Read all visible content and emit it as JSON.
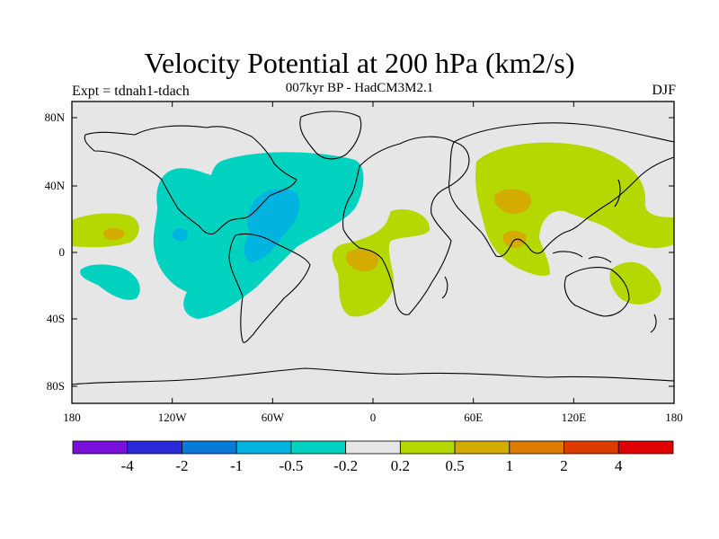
{
  "title": "Velocity Potential at 200 hPa (km2/s)",
  "subtitle": "007kyr BP - HadCM3M2.1",
  "expt_label": "Expt = tdnah1-tdach",
  "season": "DJF",
  "map": {
    "lon_ticks": [
      "180",
      "120W",
      "60W",
      "0",
      "60E",
      "120E",
      "180"
    ],
    "lat_ticks": [
      "80N",
      "40N",
      "0",
      "40S",
      "80S"
    ],
    "background_color": "#e6e6e6"
  },
  "colorbar": {
    "colors": [
      "#7a10d8",
      "#2a2ad8",
      "#0a7ad8",
      "#00b4e0",
      "#00d2c0",
      "#e6e6e6",
      "#b4d800",
      "#d4ac00",
      "#dc7c00",
      "#dc3c00",
      "#e00000"
    ],
    "labels": [
      "-4",
      "-2",
      "-1",
      "-0.5",
      "-0.2",
      "0.2",
      "0.5",
      "1",
      "2",
      "4"
    ]
  },
  "contour_colors": {
    "neg_weak": "#00d2c0",
    "neg_mod": "#00b4e0",
    "pos_weak": "#b4d800",
    "pos_mod": "#d4ac00"
  }
}
